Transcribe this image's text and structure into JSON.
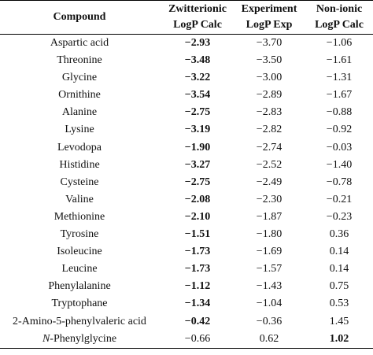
{
  "headers": {
    "compound": "Compound",
    "zwitterionic_l1": "Zwitterionic",
    "zwitterionic_l2": "LogP Calc",
    "experiment_l1": "Experiment",
    "experiment_l2": "LogP Exp",
    "nonionic_l1": "Non-ionic",
    "nonionic_l2": "LogP Calc"
  },
  "rows": [
    {
      "name": "Aspartic acid",
      "zwit": "−2.93",
      "exp": "−3.70",
      "non": "−1.06",
      "bold": "zwit"
    },
    {
      "name": "Threonine",
      "zwit": "−3.48",
      "exp": "−3.50",
      "non": "−1.61",
      "bold": "zwit"
    },
    {
      "name": "Glycine",
      "zwit": "−3.22",
      "exp": "−3.00",
      "non": "−1.31",
      "bold": "zwit"
    },
    {
      "name": "Ornithine",
      "zwit": "−3.54",
      "exp": "−2.89",
      "non": "−1.67",
      "bold": "zwit"
    },
    {
      "name": "Alanine",
      "zwit": "−2.75",
      "exp": "−2.83",
      "non": "−0.88",
      "bold": "zwit"
    },
    {
      "name": "Lysine",
      "zwit": "−3.19",
      "exp": "−2.82",
      "non": "−0.92",
      "bold": "zwit"
    },
    {
      "name": "Levodopa",
      "zwit": "−1.90",
      "exp": "−2.74",
      "non": "−0.03",
      "bold": "zwit"
    },
    {
      "name": "Histidine",
      "zwit": "−3.27",
      "exp": "−2.52",
      "non": "−1.40",
      "bold": "zwit"
    },
    {
      "name": "Cysteine",
      "zwit": "−2.75",
      "exp": "−2.49",
      "non": "−0.78",
      "bold": "zwit"
    },
    {
      "name": "Valine",
      "zwit": "−2.08",
      "exp": "−2.30",
      "non": "−0.21",
      "bold": "zwit"
    },
    {
      "name": "Methionine",
      "zwit": "−2.10",
      "exp": "−1.87",
      "non": "−0.23",
      "bold": "zwit"
    },
    {
      "name": "Tyrosine",
      "zwit": "−1.51",
      "exp": "−1.80",
      "non": "0.36",
      "bold": "zwit"
    },
    {
      "name": "Isoleucine",
      "zwit": "−1.73",
      "exp": "−1.69",
      "non": "0.14",
      "bold": "zwit"
    },
    {
      "name": "Leucine",
      "zwit": "−1.73",
      "exp": "−1.57",
      "non": "0.14",
      "bold": "zwit"
    },
    {
      "name": "Phenylalanine",
      "zwit": "−1.12",
      "exp": "−1.43",
      "non": "0.75",
      "bold": "zwit"
    },
    {
      "name": "Tryptophane",
      "zwit": "−1.34",
      "exp": "−1.04",
      "non": "0.53",
      "bold": "zwit"
    },
    {
      "name": "2-Amino-5-phenylvaleric acid",
      "zwit": "−0.42",
      "exp": "−0.36",
      "non": "1.45",
      "bold": "zwit"
    },
    {
      "name_prefix": "N",
      "name": "-Phenylglycine",
      "zwit": "−0.66",
      "exp": "0.62",
      "non": "1.02",
      "bold": "non"
    }
  ]
}
